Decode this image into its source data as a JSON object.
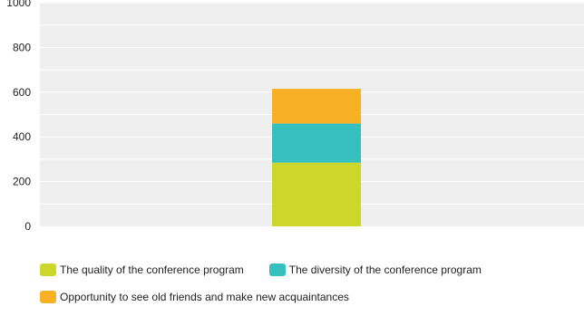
{
  "chart_data": {
    "type": "bar",
    "stacked": true,
    "categories": [
      ""
    ],
    "series": [
      {
        "name": "The quality of the conference program",
        "values": [
          285
        ],
        "color": "#cdd62a"
      },
      {
        "name": "The diversity of the conference program",
        "values": [
          175
        ],
        "color": "#35bfbf"
      },
      {
        "name": "Opportunity to see old friends and make new acquaintances",
        "values": [
          155
        ],
        "color": "#f8b124"
      }
    ],
    "yticks": [
      0,
      200,
      400,
      600,
      800,
      1000
    ],
    "ylim": [
      0,
      1000
    ],
    "grid": true,
    "legend_position": "bottom",
    "background_color": "#efefef",
    "grid_color": "#ffffff"
  }
}
